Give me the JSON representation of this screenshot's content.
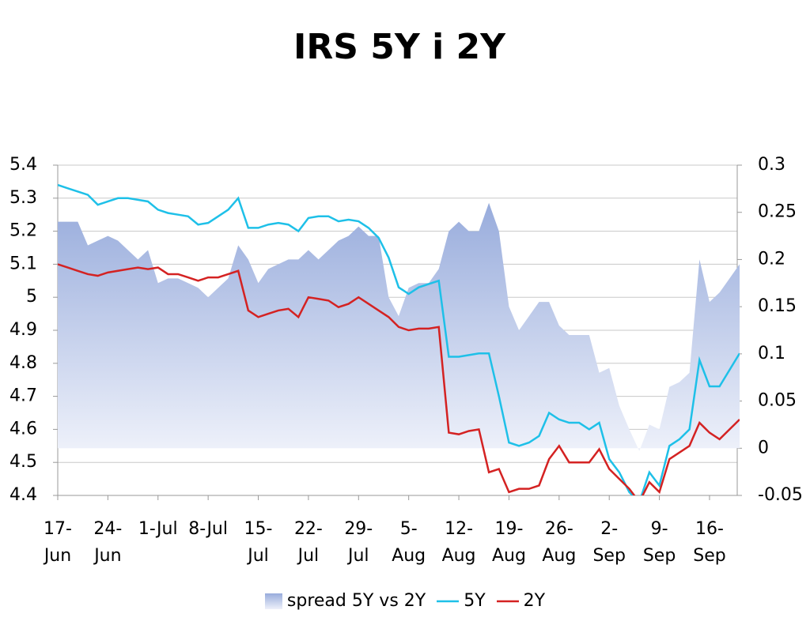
{
  "chart_data": {
    "type": "line",
    "title": "IRS 5Y i 2Y",
    "categories": [
      "17-Jun",
      null,
      null,
      null,
      null,
      "24-Jun",
      null,
      null,
      null,
      null,
      "1-Jul",
      null,
      null,
      null,
      null,
      "8-Jul",
      null,
      null,
      null,
      null,
      "15-Jul",
      null,
      null,
      null,
      null,
      "22-Jul",
      null,
      null,
      null,
      null,
      "29-Jul",
      null,
      null,
      null,
      null,
      "5-Aug",
      null,
      null,
      null,
      null,
      "12-Aug",
      null,
      null,
      null,
      null,
      "19-Aug",
      null,
      null,
      null,
      null,
      "26-Aug",
      null,
      null,
      null,
      null,
      "2-Sep",
      null,
      null,
      null,
      null,
      "9-Sep",
      null,
      null,
      null,
      null,
      "16-Sep",
      null,
      null,
      null
    ],
    "series": [
      {
        "name": "spread 5Y vs 2Y",
        "type": "area",
        "axis": "y2",
        "color": "#9aaedd",
        "values": [
          0.24,
          0.24,
          0.24,
          0.215,
          0.22,
          0.225,
          0.22,
          0.21,
          0.2,
          0.21,
          0.175,
          0.18,
          0.18,
          0.175,
          0.17,
          0.16,
          0.17,
          0.18,
          0.215,
          0.2,
          0.175,
          0.19,
          0.195,
          0.2,
          0.2,
          0.21,
          0.2,
          0.21,
          0.22,
          0.225,
          0.235,
          0.225,
          0.225,
          0.16,
          0.14,
          0.17,
          0.175,
          0.175,
          0.19,
          0.23,
          0.24,
          0.23,
          0.23,
          0.26,
          0.23,
          0.15,
          0.125,
          0.14,
          0.155,
          0.155,
          0.13,
          0.12,
          0.12,
          0.12,
          0.08,
          0.085,
          0.045,
          0.02,
          -0.003,
          0.025,
          0.02,
          0.065,
          0.07,
          0.08,
          0.2,
          0.155,
          0.165,
          0.18,
          0.195
        ]
      },
      {
        "name": "5Y",
        "type": "line",
        "color": "#1ec0e8",
        "values": [
          5.34,
          5.33,
          5.32,
          5.31,
          5.28,
          5.29,
          5.3,
          5.3,
          5.295,
          5.29,
          5.265,
          5.255,
          5.25,
          5.245,
          5.22,
          5.225,
          5.245,
          5.265,
          5.3,
          5.21,
          5.21,
          5.22,
          5.225,
          5.22,
          5.2,
          5.24,
          5.245,
          5.245,
          5.23,
          5.235,
          5.23,
          5.21,
          5.18,
          5.12,
          5.03,
          5.01,
          5.03,
          5.04,
          5.05,
          4.82,
          4.82,
          4.825,
          4.83,
          4.83,
          4.7,
          4.56,
          4.55,
          4.56,
          4.58,
          4.65,
          4.63,
          4.62,
          4.62,
          4.6,
          4.62,
          4.51,
          4.47,
          4.41,
          4.38,
          4.47,
          4.43,
          4.55,
          4.57,
          4.6,
          4.81,
          4.73,
          4.73,
          4.78,
          4.83
        ]
      },
      {
        "name": "2Y",
        "type": "line",
        "color": "#d42222",
        "values": [
          5.1,
          5.09,
          5.08,
          5.07,
          5.065,
          5.075,
          5.08,
          5.085,
          5.09,
          5.085,
          5.09,
          5.07,
          5.07,
          5.06,
          5.05,
          5.06,
          5.06,
          5.07,
          5.08,
          4.96,
          4.94,
          4.95,
          4.96,
          4.965,
          4.94,
          5.0,
          4.995,
          4.99,
          4.97,
          4.98,
          5.0,
          4.98,
          4.96,
          4.94,
          4.91,
          4.9,
          4.905,
          4.905,
          4.91,
          4.59,
          4.585,
          4.595,
          4.6,
          4.47,
          4.48,
          4.41,
          4.42,
          4.42,
          4.43,
          4.51,
          4.55,
          4.5,
          4.5,
          4.5,
          4.54,
          4.48,
          4.45,
          4.42,
          4.38,
          4.44,
          4.41,
          4.51,
          4.53,
          4.55,
          4.62,
          4.59,
          4.57,
          4.6,
          4.63
        ]
      }
    ],
    "ylim": [
      4.4,
      5.4
    ],
    "yticks": [
      4.4,
      4.5,
      4.6,
      4.7,
      4.8,
      4.9,
      5,
      5.1,
      5.2,
      5.3,
      5.4
    ],
    "y2lim": [
      -0.05,
      0.3
    ],
    "y2ticks": [
      -0.05,
      0,
      0.05,
      0.1,
      0.15,
      0.2,
      0.25,
      0.3
    ],
    "grid": true,
    "legend": "bottom"
  }
}
